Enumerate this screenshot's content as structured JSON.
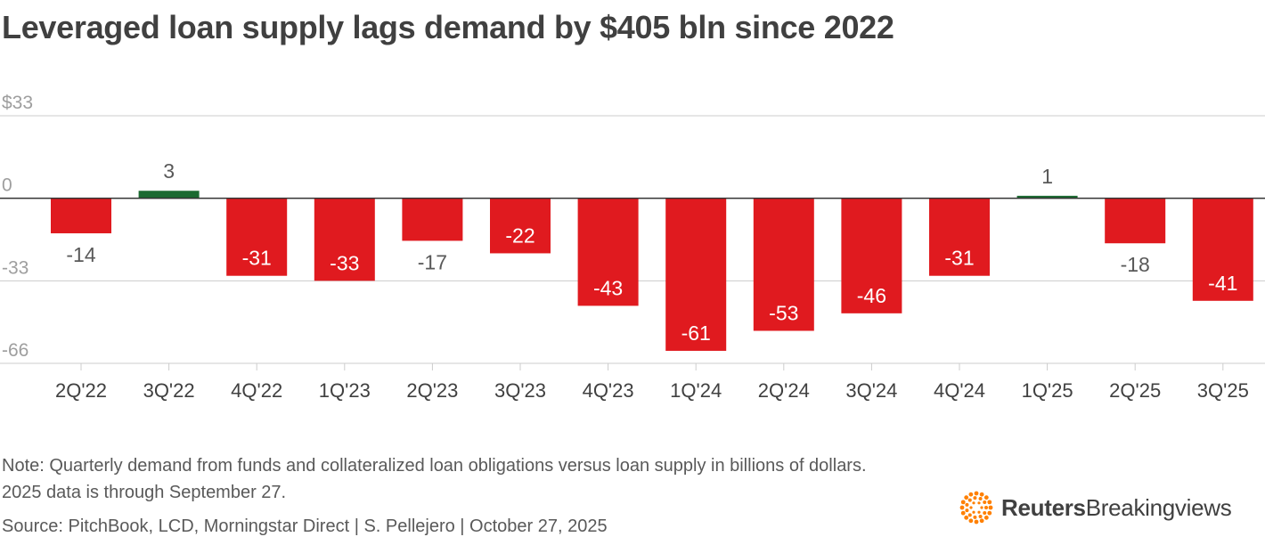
{
  "title": "Leveraged loan supply lags demand by $405 bln since 2022",
  "chart_data": {
    "type": "bar",
    "categories": [
      "2Q'22",
      "3Q'22",
      "4Q'22",
      "1Q'23",
      "2Q'23",
      "3Q'23",
      "4Q'23",
      "1Q'24",
      "2Q'24",
      "3Q'24",
      "4Q'24",
      "1Q'25",
      "2Q'25",
      "3Q'25"
    ],
    "values": [
      -14,
      3,
      -31,
      -33,
      -17,
      -22,
      -43,
      -61,
      -53,
      -46,
      -31,
      1,
      -18,
      -41
    ],
    "data_labels": [
      "-14",
      "3",
      "-31",
      "-33",
      "-17",
      "-22",
      "-43",
      "-61",
      "-53",
      "-46",
      "-31",
      "1",
      "-18",
      "-41"
    ],
    "yticks": [
      33,
      0,
      -33,
      -66
    ],
    "ytick_labels": [
      "$33",
      "0",
      "-33",
      "-66"
    ],
    "ylim": [
      -66,
      33
    ],
    "colors": {
      "positive": "#1b6a31",
      "negative": "#e01a1f",
      "grid": "#cccccc",
      "axis": "#333333"
    }
  },
  "note": "Note: Quarterly demand from funds and collateralized loan obligations versus loan supply in billions of dollars. 2025 data is through September 27.",
  "source": "Source: PitchBook, LCD, Morningstar Direct | S. Pellejero | October 27, 2025",
  "logo": {
    "brand": "Reuters",
    "product": "Breakingviews",
    "icon": "reuters-dot-ring-icon",
    "color": "#ff8000"
  }
}
